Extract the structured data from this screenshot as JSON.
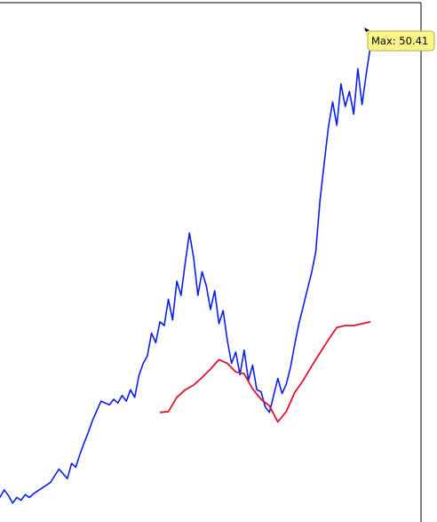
{
  "chart_data": {
    "type": "line",
    "title": "",
    "xlabel": "",
    "ylabel": "",
    "xlim": [
      0,
      100
    ],
    "ylim": [
      0,
      55
    ],
    "grid": false,
    "legend": "none",
    "series": [
      {
        "color": "#0a1fe6",
        "x": [
          0,
          1,
          2,
          3,
          4,
          5,
          6,
          7,
          8,
          10,
          12,
          14,
          16,
          17,
          18,
          19,
          20,
          21,
          22,
          24,
          26,
          27,
          28,
          29,
          30,
          31,
          32,
          33,
          34,
          35,
          36,
          37,
          38,
          39,
          40,
          41,
          42,
          43,
          44,
          45,
          46,
          47,
          48,
          49,
          50,
          51,
          52,
          53,
          54,
          55,
          56,
          57,
          58,
          59,
          60,
          61,
          62,
          63,
          64,
          65,
          66,
          67,
          68,
          69,
          70,
          71,
          72,
          73,
          74,
          75,
          76,
          77,
          78,
          79,
          80,
          81,
          82,
          83,
          84,
          85,
          86,
          87,
          88
        ],
        "y": [
          2.6,
          3.4,
          2.8,
          2.0,
          2.6,
          2.3,
          2.9,
          2.6,
          3.0,
          3.6,
          4.2,
          5.6,
          4.6,
          6.2,
          5.8,
          7.2,
          8.4,
          9.5,
          10.8,
          12.8,
          12.4,
          13.0,
          12.6,
          13.4,
          12.8,
          14.0,
          13.2,
          15.5,
          16.8,
          17.6,
          20.0,
          19.0,
          21.2,
          20.8,
          23.6,
          21.4,
          25.5,
          24.0,
          27.5,
          30.6,
          28.0,
          24.0,
          26.5,
          25.0,
          22.5,
          24.5,
          21.0,
          22.4,
          19.2,
          16.8,
          18.0,
          15.6,
          18.2,
          15.0,
          16.6,
          14.0,
          13.8,
          12.2,
          11.6,
          13.4,
          15.2,
          13.6,
          14.6,
          16.4,
          18.8,
          21.0,
          22.8,
          24.6,
          26.4,
          28.6,
          34.0,
          38.0,
          41.8,
          44.5,
          42.0,
          46.4,
          44.0,
          45.6,
          43.2,
          48.0,
          44.2,
          47.5,
          50.41
        ]
      },
      {
        "color": "#e0112b",
        "x": [
          38,
          40,
          42,
          44,
          46,
          48,
          50,
          52,
          54,
          56,
          58,
          60,
          62,
          64,
          66,
          68,
          70,
          72,
          74,
          76,
          78,
          80,
          82,
          84,
          86,
          88
        ],
        "y": [
          11.6,
          11.7,
          13.2,
          14.0,
          14.5,
          15.3,
          16.2,
          17.2,
          16.8,
          15.9,
          15.7,
          14.1,
          13.0,
          12.3,
          10.6,
          11.7,
          13.7,
          15.0,
          16.5,
          17.9,
          19.3,
          20.6,
          20.8,
          20.8,
          21.0,
          21.2
        ]
      }
    ],
    "tooltip": {
      "label": "Max: 50.41"
    }
  }
}
